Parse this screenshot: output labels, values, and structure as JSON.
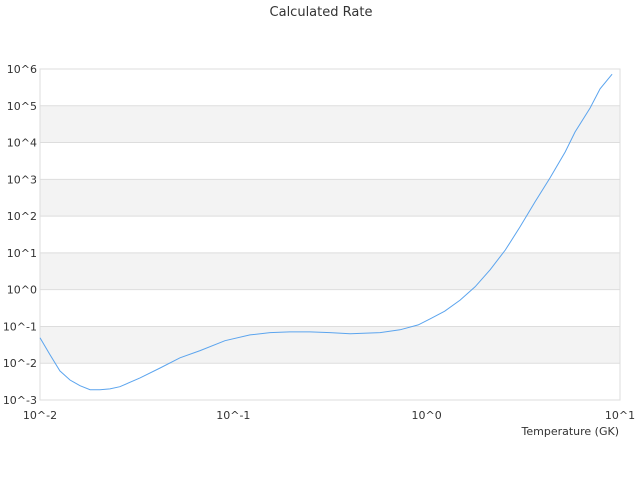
{
  "chart_data": {
    "type": "line",
    "title": "Calculated Rate",
    "xlabel": "Temperature (GK)",
    "ylabel": "",
    "xscale": "log",
    "yscale": "log",
    "xlim": [
      0.01,
      10
    ],
    "ylim": [
      0.001,
      1000000
    ],
    "x_tick_values": [
      0.01,
      0.1,
      1,
      10
    ],
    "x_tick_labels": [
      "10^-2",
      "10^-1",
      "10^0",
      "10^1"
    ],
    "y_tick_values": [
      0.001,
      0.01,
      0.1,
      1,
      10,
      100,
      1000,
      10000,
      100000,
      1000000
    ],
    "y_tick_labels": [
      "10^-3",
      "10^-2",
      "10^-1",
      "10^0",
      "10^1",
      "10^2",
      "10^3",
      "10^4",
      "10^5",
      "10^6"
    ],
    "grid": true,
    "alternating_bands": true,
    "band_color": "#f3f3f3",
    "line_color": "#5ba4ee",
    "series": [
      {
        "x": [
          0.01,
          0.01127,
          0.01268,
          0.01429,
          0.0161,
          0.01816,
          0.0204,
          0.023,
          0.0259,
          0.0329,
          0.0418,
          0.053,
          0.0673,
          0.0906,
          0.122,
          0.155,
          0.196,
          0.249,
          0.316,
          0.402,
          0.574,
          0.728,
          0.904,
          1.04,
          1.24,
          1.49,
          1.78,
          2.13,
          2.55,
          3.04,
          3.64,
          4.35,
          5.2,
          5.86,
          7.0,
          7.89,
          9.1
        ],
        "y": [
          0.049,
          0.017,
          0.0062,
          0.0035,
          0.00245,
          0.0019,
          0.0019,
          0.002,
          0.0023,
          0.004,
          0.0074,
          0.014,
          0.022,
          0.041,
          0.059,
          0.068,
          0.071,
          0.071,
          0.068,
          0.063,
          0.068,
          0.081,
          0.11,
          0.16,
          0.26,
          0.52,
          1.2,
          3.5,
          12,
          51,
          245,
          1100,
          5500,
          19500,
          87000,
          290000,
          720000
        ]
      }
    ]
  }
}
